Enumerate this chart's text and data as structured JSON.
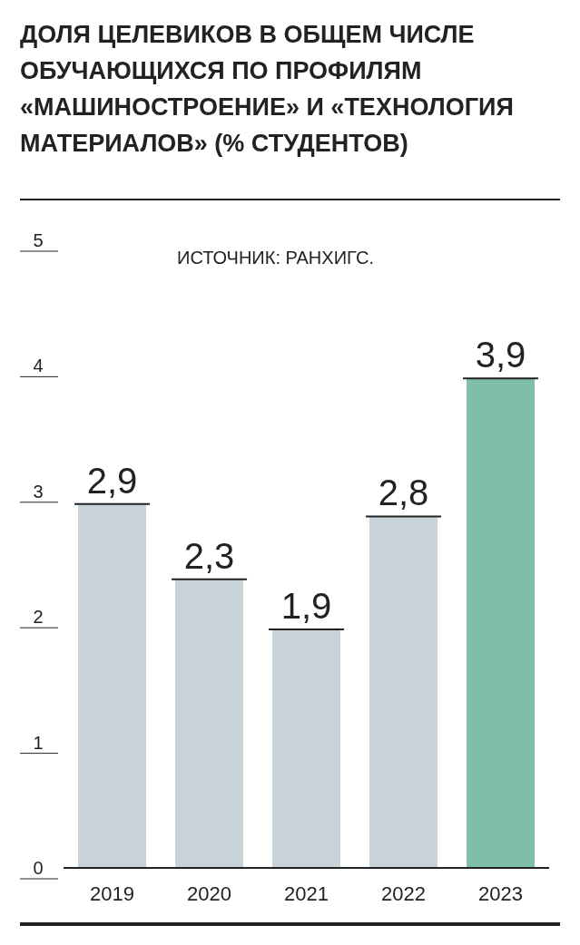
{
  "chart_data": {
    "type": "bar",
    "title": "ДОЛЯ ЦЕЛЕВИКОВ В ОБЩЕМ ЧИСЛЕ ОБУЧАЮЩИХСЯ ПО ПРОФИЛЯМ «МАШИНОСТРОЕНИЕ» И «ТЕХНОЛОГИЯ МАТЕРИАЛОВ» (% СТУДЕНТОВ)",
    "annotations": [
      "ИСТОЧНИК: РАНХИГС."
    ],
    "categories": [
      "2019",
      "2020",
      "2021",
      "2022",
      "2023"
    ],
    "values": [
      2.9,
      2.3,
      1.9,
      2.8,
      3.9
    ],
    "value_labels": [
      "2,9",
      "2,3",
      "1,9",
      "2,8",
      "3,9"
    ],
    "colors": [
      "#c8d3d9",
      "#c8d3d9",
      "#c8d3d9",
      "#c8d3d9",
      "#7fbfa7"
    ],
    "ylim": [
      0,
      5
    ],
    "yticks": [
      0,
      1,
      2,
      3,
      4,
      5
    ]
  }
}
